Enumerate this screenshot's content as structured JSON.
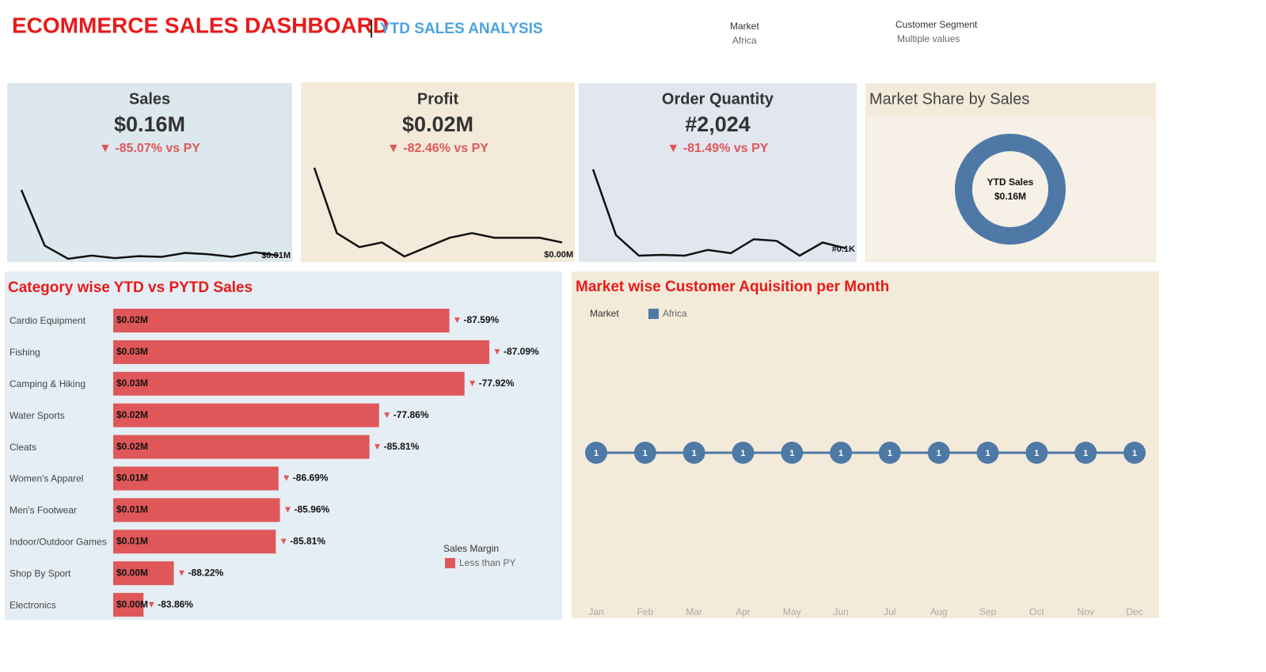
{
  "header": {
    "title": "ECOMMERCE SALES DASHBOARD",
    "subtitle": "YTD SALES ANALYSIS"
  },
  "filters": [
    {
      "label": "Market",
      "value": "Africa"
    },
    {
      "label": "Customer Segment",
      "value": "Multiple values"
    }
  ],
  "kpis": [
    {
      "title": "Sales",
      "value": "$0.16M",
      "change": "▼ -85.07% vs PY",
      "end_label": "$0.01M",
      "trend": [
        0.11,
        0.025,
        0.005,
        0.01,
        0.006,
        0.009,
        0.008,
        0.014,
        0.012,
        0.008,
        0.015,
        0.01
      ]
    },
    {
      "title": "Profit",
      "value": "$0.02M",
      "change": "▼ -82.46% vs PY",
      "end_label": "$0.00M",
      "trend": [
        0.02,
        0.006,
        0.003,
        0.004,
        0.001,
        0.003,
        0.005,
        0.006,
        0.005,
        0.005,
        0.005,
        0.004
      ]
    },
    {
      "title": "Order Quantity",
      "value": "#2,024",
      "change": "▼ -81.49% vs PY",
      "end_label": "#0.1K",
      "trend": [
        1.1,
        0.3,
        0.05,
        0.06,
        0.05,
        0.12,
        0.08,
        0.25,
        0.23,
        0.05,
        0.21,
        0.14
      ]
    }
  ],
  "chart_data": [
    {
      "type": "donut",
      "title": "Market Share by Sales",
      "center_label": "YTD Sales",
      "values": [
        0.16
      ],
      "value_labels": [
        "$0.16M"
      ],
      "color": "#4e79a7"
    },
    {
      "type": "bar",
      "title": "Category wise YTD vs PYTD Sales",
      "legend_title": "Sales Margin",
      "categories": [
        "Cardio Equipment",
        "Fishing",
        "Camping & Hiking",
        "Water Sports",
        "Cleats",
        "Women's Apparel",
        "Men's Footwear",
        "Indoor/Outdoor Games",
        "Shop By Sport",
        "Electronics"
      ],
      "series": [
        {
          "name": "Less than PY",
          "color": "#e05759",
          "values": [
            0.0244,
            0.0273,
            0.0255,
            0.0193,
            0.0186,
            0.012,
            0.0121,
            0.0118,
            0.0044,
            0.0022
          ],
          "value_labels": [
            "$0.02M",
            "$0.03M",
            "$0.03M",
            "$0.02M",
            "$0.02M",
            "$0.01M",
            "$0.01M",
            "$0.01M",
            "$0.00M",
            "$0.00M"
          ]
        }
      ],
      "changes": [
        -87.59,
        -87.09,
        -77.92,
        -77.86,
        -85.81,
        -86.69,
        -85.96,
        -85.81,
        -88.22,
        -83.86
      ],
      "change_labels": [
        "-87.59%",
        "-87.09%",
        "-77.92%",
        "-77.86%",
        "-85.81%",
        "-86.69%",
        "-85.96%",
        "-85.81%",
        "-88.22%",
        "-83.86%"
      ]
    },
    {
      "type": "line",
      "title": "Market wise Customer Aquisition per Month",
      "legend_title": "Market",
      "categories": [
        "Jan",
        "Feb",
        "Mar",
        "Apr",
        "May",
        "Jun",
        "Jul",
        "Aug",
        "Sep",
        "Oct",
        "Nov",
        "Dec"
      ],
      "series": [
        {
          "name": "Africa",
          "color": "#4e79a7",
          "values": [
            1,
            1,
            1,
            1,
            1,
            1,
            1,
            1,
            1,
            1,
            1,
            1
          ]
        }
      ]
    }
  ]
}
